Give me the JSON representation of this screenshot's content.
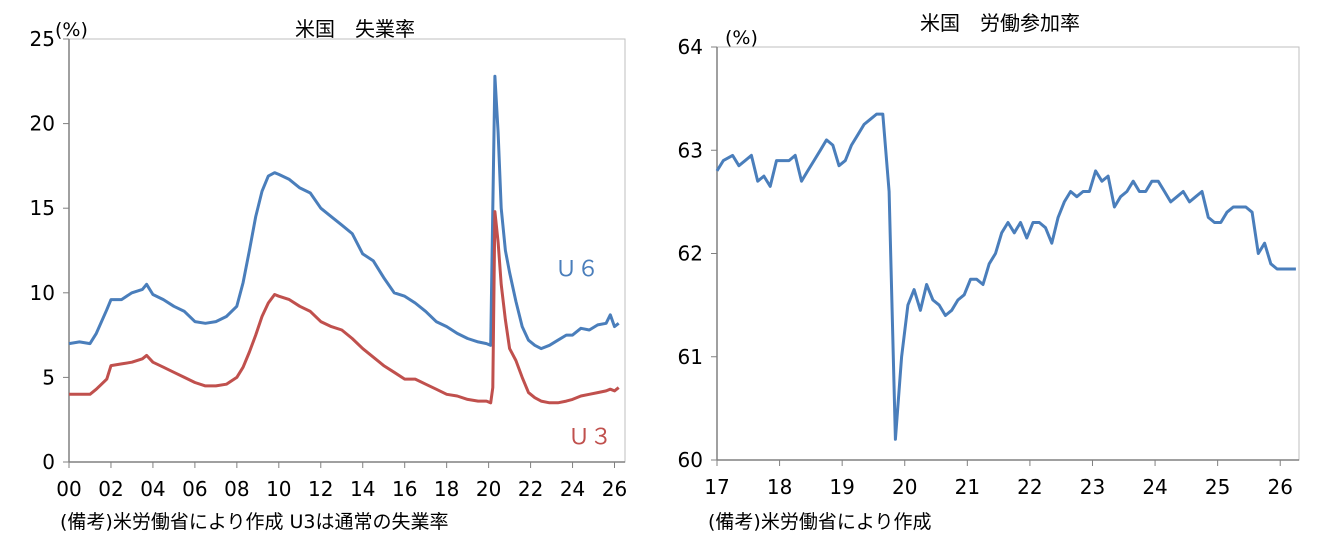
{
  "chart_data": [
    {
      "type": "line",
      "title": "米国　失業率",
      "unit_label": "(%)",
      "x_tick_labels": [
        "00",
        "02",
        "04",
        "06",
        "08",
        "10",
        "12",
        "14",
        "16",
        "18",
        "20",
        "22",
        "24",
        "26"
      ],
      "y_tick_labels": [
        "0",
        "5",
        "10",
        "15",
        "20",
        "25"
      ],
      "xlim": [
        2000,
        2026.5
      ],
      "ylim": [
        0,
        25
      ],
      "grid": false,
      "series": [
        {
          "name": "Ｕ６",
          "color": "#4a7ebb",
          "x": [
            2000,
            2000.5,
            2001,
            2001.3,
            2001.8,
            2002,
            2002.5,
            2003,
            2003.5,
            2003.7,
            2004,
            2004.5,
            2005,
            2005.5,
            2006,
            2006.5,
            2007,
            2007.5,
            2008,
            2008.3,
            2008.6,
            2008.9,
            2009.2,
            2009.5,
            2009.8,
            2010,
            2010.5,
            2011,
            2011.5,
            2012,
            2012.5,
            2013,
            2013.5,
            2014,
            2014.5,
            2015,
            2015.5,
            2016,
            2016.5,
            2017,
            2017.5,
            2018,
            2018.5,
            2019,
            2019.5,
            2019.9,
            2020.1,
            2020.2,
            2020.3,
            2020.45,
            2020.6,
            2020.8,
            2021,
            2021.3,
            2021.6,
            2021.9,
            2022.2,
            2022.5,
            2022.9,
            2023.3,
            2023.7,
            2024,
            2024.4,
            2024.8,
            2025.2,
            2025.6,
            2025.8,
            2026,
            2026.2
          ],
          "values": [
            7.0,
            7.1,
            7.0,
            7.6,
            9.0,
            9.6,
            9.6,
            10.0,
            10.2,
            10.5,
            9.9,
            9.6,
            9.2,
            8.9,
            8.3,
            8.2,
            8.3,
            8.6,
            9.2,
            10.6,
            12.5,
            14.5,
            16.0,
            16.9,
            17.1,
            17.0,
            16.7,
            16.2,
            15.9,
            15.0,
            14.5,
            14.0,
            13.5,
            12.3,
            11.9,
            10.9,
            10.0,
            9.8,
            9.4,
            8.9,
            8.3,
            8.0,
            7.6,
            7.3,
            7.1,
            7.0,
            6.9,
            15.0,
            22.8,
            19.5,
            15.0,
            12.5,
            11.2,
            9.5,
            8.0,
            7.2,
            6.9,
            6.7,
            6.9,
            7.2,
            7.5,
            7.5,
            7.9,
            7.8,
            8.1,
            8.2,
            8.7,
            8.0,
            8.2
          ]
        },
        {
          "name": "Ｕ３",
          "color": "#c0504d",
          "x": [
            2000,
            2000.5,
            2001,
            2001.3,
            2001.8,
            2002,
            2002.5,
            2003,
            2003.5,
            2003.7,
            2004,
            2004.5,
            2005,
            2005.5,
            2006,
            2006.5,
            2007,
            2007.5,
            2008,
            2008.3,
            2008.6,
            2008.9,
            2009.2,
            2009.5,
            2009.8,
            2010,
            2010.5,
            2011,
            2011.5,
            2012,
            2012.5,
            2013,
            2013.5,
            2014,
            2014.5,
            2015,
            2015.5,
            2016,
            2016.5,
            2017,
            2017.5,
            2018,
            2018.5,
            2019,
            2019.5,
            2019.9,
            2020.1,
            2020.2,
            2020.3,
            2020.45,
            2020.6,
            2020.8,
            2021,
            2021.3,
            2021.6,
            2021.9,
            2022.2,
            2022.5,
            2022.9,
            2023.3,
            2023.7,
            2024,
            2024.4,
            2024.8,
            2025.2,
            2025.6,
            2025.8,
            2026,
            2026.2
          ],
          "values": [
            4.0,
            4.0,
            4.0,
            4.3,
            4.9,
            5.7,
            5.8,
            5.9,
            6.1,
            6.3,
            5.9,
            5.6,
            5.3,
            5.0,
            4.7,
            4.5,
            4.5,
            4.6,
            5.0,
            5.6,
            6.5,
            7.5,
            8.6,
            9.4,
            9.9,
            9.8,
            9.6,
            9.2,
            8.9,
            8.3,
            8.0,
            7.8,
            7.3,
            6.7,
            6.2,
            5.7,
            5.3,
            4.9,
            4.9,
            4.6,
            4.3,
            4.0,
            3.9,
            3.7,
            3.6,
            3.6,
            3.5,
            4.4,
            14.8,
            13.0,
            10.5,
            8.4,
            6.7,
            6.0,
            5.0,
            4.1,
            3.8,
            3.6,
            3.5,
            3.5,
            3.6,
            3.7,
            3.9,
            4.0,
            4.1,
            4.2,
            4.3,
            4.2,
            4.4
          ]
        }
      ]
    },
    {
      "type": "line",
      "title": "米国　労働参加率",
      "unit_label": "(%)",
      "x_tick_labels": [
        "17",
        "18",
        "19",
        "20",
        "21",
        "22",
        "23",
        "24",
        "25",
        "26"
      ],
      "y_tick_labels": [
        "60",
        "61",
        "62",
        "63",
        "64"
      ],
      "xlim": [
        2017,
        2026.3
      ],
      "ylim": [
        60,
        64
      ],
      "grid": false,
      "series": [
        {
          "name": "労働参加率",
          "color": "#4a7ebb",
          "x": [
            2017.0,
            2017.1,
            2017.25,
            2017.35,
            2017.45,
            2017.55,
            2017.65,
            2017.75,
            2017.85,
            2017.95,
            2018.05,
            2018.15,
            2018.25,
            2018.35,
            2018.45,
            2018.55,
            2018.65,
            2018.75,
            2018.85,
            2018.95,
            2019.05,
            2019.15,
            2019.25,
            2019.35,
            2019.45,
            2019.55,
            2019.65,
            2019.75,
            2019.85,
            2019.95,
            2020.05,
            2020.15,
            2020.25,
            2020.35,
            2020.45,
            2020.55,
            2020.65,
            2020.75,
            2020.85,
            2020.95,
            2021.05,
            2021.15,
            2021.25,
            2021.35,
            2021.45,
            2021.55,
            2021.65,
            2021.75,
            2021.85,
            2021.95,
            2022.05,
            2022.15,
            2022.25,
            2022.35,
            2022.45,
            2022.55,
            2022.65,
            2022.75,
            2022.85,
            2022.95,
            2023.05,
            2023.15,
            2023.25,
            2023.35,
            2023.45,
            2023.55,
            2023.65,
            2023.75,
            2023.85,
            2023.95,
            2024.05,
            2024.15,
            2024.25,
            2024.35,
            2024.45,
            2024.55,
            2024.65,
            2024.75,
            2024.85,
            2024.95,
            2025.05,
            2025.15,
            2025.25,
            2025.35,
            2025.45,
            2025.55,
            2025.65,
            2025.75,
            2025.85,
            2025.95,
            2026.05,
            2026.15,
            2026.25
          ],
          "values": [
            62.8,
            62.9,
            62.95,
            62.85,
            62.9,
            62.95,
            62.7,
            62.75,
            62.65,
            62.9,
            62.9,
            62.9,
            62.95,
            62.7,
            62.8,
            62.9,
            63.0,
            63.1,
            63.05,
            62.85,
            62.9,
            63.05,
            63.15,
            63.25,
            63.3,
            63.35,
            63.35,
            62.6,
            60.2,
            61.0,
            61.5,
            61.65,
            61.45,
            61.7,
            61.55,
            61.5,
            61.4,
            61.45,
            61.55,
            61.6,
            61.75,
            61.75,
            61.7,
            61.9,
            62.0,
            62.2,
            62.3,
            62.2,
            62.3,
            62.15,
            62.3,
            62.3,
            62.25,
            62.1,
            62.35,
            62.5,
            62.6,
            62.55,
            62.6,
            62.6,
            62.8,
            62.7,
            62.75,
            62.45,
            62.55,
            62.6,
            62.7,
            62.6,
            62.6,
            62.7,
            62.7,
            62.6,
            62.5,
            62.55,
            62.6,
            62.5,
            62.55,
            62.6,
            62.35,
            62.3,
            62.3,
            62.4,
            62.45,
            62.45,
            62.45,
            62.4,
            62.0,
            62.1,
            61.9,
            61.85,
            61.85,
            61.85,
            61.85
          ]
        }
      ]
    }
  ],
  "labels": {
    "u6": "Ｕ６",
    "u3": "Ｕ３"
  },
  "notes": {
    "left": "(備考)米労働省により作成 U3は通常の失業率",
    "right": "(備考)米労働省により作成"
  }
}
